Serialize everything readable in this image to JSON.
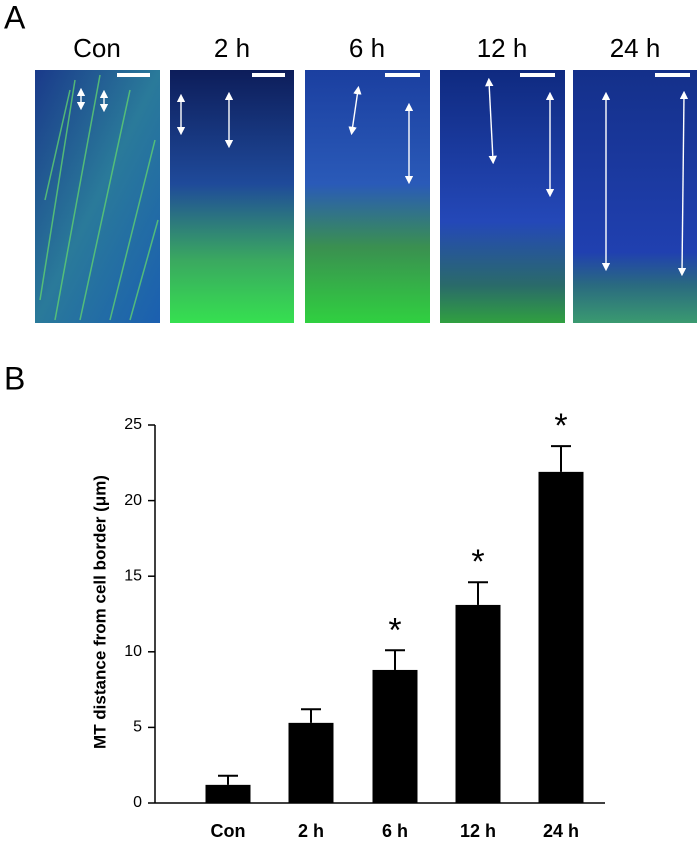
{
  "panel_a": {
    "label": "A",
    "images": [
      "Con",
      "2 h",
      "6 h",
      "12 h",
      "24 h"
    ]
  },
  "panel_b": {
    "label": "B"
  },
  "chart_data": {
    "type": "bar",
    "ylabel": "MT distance from cell border (μm)",
    "categories": [
      "Con",
      "2 h",
      "6 h",
      "12 h",
      "24 h"
    ],
    "values": [
      1.2,
      5.3,
      8.8,
      13.1,
      21.9
    ],
    "errors": [
      0.6,
      0.9,
      1.3,
      1.5,
      1.7
    ],
    "significance": [
      null,
      null,
      "*",
      "*",
      "*"
    ],
    "color": "#000000",
    "ylim": [
      0,
      25
    ],
    "yticks": [
      0,
      5,
      10,
      15,
      20,
      25
    ]
  }
}
